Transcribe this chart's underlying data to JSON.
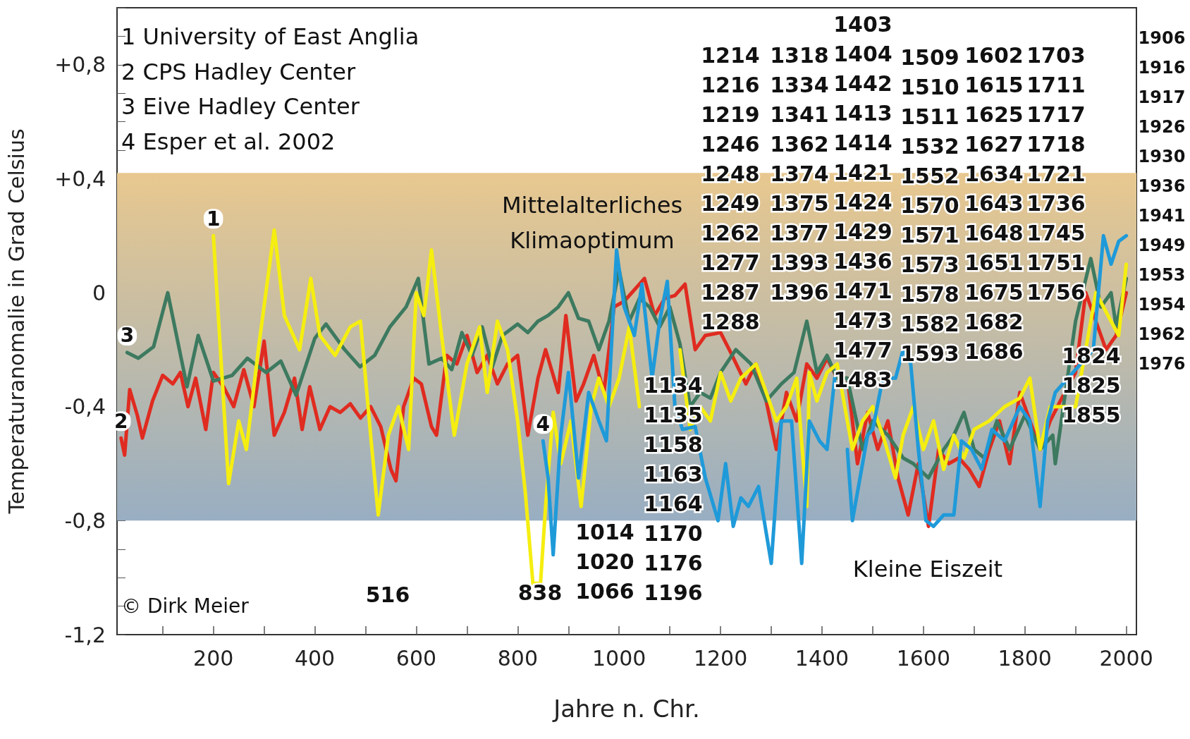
{
  "chart_data": {
    "type": "line",
    "xlabel": "Jahre n. Chr.",
    "ylabel": "Temperaturanomalie in Grad Celsius",
    "xlim": [
      10,
      2020
    ],
    "ylim": [
      -1.2,
      1.0
    ],
    "xticks": [
      {
        "value": 100,
        "label": null
      },
      200,
      {
        "value": 300,
        "label": null
      },
      400,
      {
        "value": 500,
        "label": null
      },
      600,
      {
        "value": 700,
        "label": null
      },
      800,
      {
        "value": 900,
        "label": null
      },
      1000,
      {
        "value": 1100,
        "label": null
      },
      1200,
      {
        "value": 1300,
        "label": null
      },
      1400,
      {
        "value": 1500,
        "label": null
      },
      1600,
      {
        "value": 1700,
        "label": null
      },
      1800,
      {
        "value": 1900,
        "label": null
      },
      2000
    ],
    "yticks": [
      {
        "value": -1.2,
        "label": "-1,2"
      },
      {
        "value": -1.1,
        "label": null
      },
      {
        "value": -1.0,
        "label": null
      },
      {
        "value": -0.9,
        "label": null
      },
      {
        "value": -0.8,
        "label": "-0,8"
      },
      {
        "value": -0.7,
        "label": null
      },
      {
        "value": -0.6,
        "label": null
      },
      {
        "value": -0.5,
        "label": null
      },
      {
        "value": -0.4,
        "label": "-0,4"
      },
      {
        "value": -0.3,
        "label": null
      },
      {
        "value": -0.2,
        "label": null
      },
      {
        "value": -0.1,
        "label": null
      },
      {
        "value": 0,
        "label": "0"
      },
      {
        "value": 0.1,
        "label": null
      },
      {
        "value": 0.2,
        "label": null
      },
      {
        "value": 0.3,
        "label": null
      },
      {
        "value": 0.4,
        "label": "+0,4"
      },
      {
        "value": 0.5,
        "label": null
      },
      {
        "value": 0.6,
        "label": null
      },
      {
        "value": 0.7,
        "label": null
      },
      {
        "value": 0.8,
        "label": "+0,8"
      },
      {
        "value": 0.9,
        "label": null
      },
      {
        "value": 1.0,
        "label": null
      }
    ],
    "grid": false,
    "legend": false,
    "marker": "none",
    "line_style": "solid",
    "bands": [
      {
        "axis": "y",
        "from": -0.8,
        "to": 0.42,
        "color": "#e8c88f"
      }
    ],
    "series": [
      {
        "name": "2",
        "color": "#e02b20",
        "x": [
          18,
          25,
          35,
          50,
          60,
          80,
          100,
          120,
          135,
          150,
          165,
          185,
          200,
          220,
          240,
          260,
          280,
          300,
          320,
          340,
          360,
          375,
          390,
          410,
          430,
          450,
          470,
          490,
          510,
          530,
          550,
          560,
          575,
          595,
          610,
          630,
          640,
          660,
          680,
          700,
          720,
          740,
          760,
          780,
          800,
          820,
          840,
          855,
          880,
          895,
          915,
          930,
          950,
          970,
          990,
          1010,
          1050,
          1070,
          1090,
          1110,
          1130,
          1150,
          1170,
          1200,
          1220,
          1250,
          1270,
          1290,
          1310,
          1330,
          1350,
          1370,
          1390,
          1410,
          1430,
          1450,
          1470,
          1490,
          1510,
          1530,
          1550,
          1570,
          1590,
          1610,
          1630,
          1650,
          1670,
          1690,
          1710,
          1730,
          1750,
          1770,
          1790,
          1810,
          1830,
          1850,
          1870,
          1900,
          1920,
          1940,
          1960,
          1980,
          2000
        ],
        "values": [
          -0.51,
          -0.57,
          -0.34,
          -0.43,
          -0.51,
          -0.38,
          -0.29,
          -0.32,
          -0.28,
          -0.4,
          -0.3,
          -0.48,
          -0.28,
          -0.33,
          -0.4,
          -0.27,
          -0.4,
          -0.17,
          -0.5,
          -0.42,
          -0.3,
          -0.48,
          -0.33,
          -0.48,
          -0.4,
          -0.42,
          -0.39,
          -0.44,
          -0.4,
          -0.47,
          -0.62,
          -0.66,
          -0.4,
          -0.3,
          -0.32,
          -0.47,
          -0.5,
          -0.22,
          -0.25,
          -0.15,
          -0.28,
          -0.22,
          -0.32,
          -0.25,
          -0.22,
          -0.5,
          -0.3,
          -0.2,
          -0.35,
          -0.08,
          -0.38,
          -0.32,
          -0.22,
          -0.35,
          -0.05,
          -0.03,
          0.05,
          -0.08,
          -0.02,
          -0.01,
          0.03,
          -0.2,
          -0.15,
          -0.14,
          -0.21,
          -0.32,
          -0.25,
          -0.38,
          -0.55,
          -0.35,
          -0.45,
          -0.25,
          -0.3,
          -0.23,
          -0.3,
          -0.3,
          -0.6,
          -0.42,
          -0.55,
          -0.45,
          -0.65,
          -0.78,
          -0.6,
          -0.82,
          -0.55,
          -0.6,
          -0.58,
          -0.62,
          -0.68,
          -0.55,
          -0.45,
          -0.6,
          -0.35,
          -0.45,
          -0.55,
          -0.45,
          -0.38,
          -0.28,
          0.0,
          -0.1,
          -0.2,
          -0.15,
          0.0
        ]
      },
      {
        "name": "3",
        "color": "#3d7a60",
        "x": [
          30,
          52,
          82,
          110,
          148,
          170,
          200,
          237,
          267,
          304,
          333,
          363,
          400,
          422,
          459,
          489,
          518,
          548,
          580,
          604,
          625,
          650,
          670,
          690,
          710,
          730,
          750,
          770,
          800,
          820,
          840,
          860,
          880,
          900,
          920,
          940,
          960,
          980,
          1000,
          1020,
          1040,
          1060,
          1080,
          1100,
          1120,
          1140,
          1160,
          1180,
          1200,
          1230,
          1260,
          1290,
          1320,
          1345,
          1370,
          1390,
          1410,
          1430,
          1450,
          1480,
          1500,
          1530,
          1560,
          1580,
          1610,
          1640,
          1660,
          1680,
          1700,
          1720,
          1745,
          1770,
          1800,
          1830,
          1855,
          1860,
          1900,
          1930,
          1950,
          1970,
          1980,
          2000
        ],
        "values": [
          -0.21,
          -0.23,
          -0.19,
          0.0,
          -0.33,
          -0.15,
          -0.31,
          -0.29,
          -0.23,
          -0.28,
          -0.24,
          -0.36,
          -0.16,
          -0.11,
          -0.2,
          -0.26,
          -0.22,
          -0.12,
          -0.05,
          0.05,
          -0.25,
          -0.23,
          -0.27,
          -0.14,
          -0.22,
          -0.12,
          -0.26,
          -0.15,
          -0.11,
          -0.14,
          -0.1,
          -0.08,
          -0.05,
          0.0,
          -0.09,
          -0.1,
          -0.2,
          -0.1,
          0.08,
          -0.1,
          -0.02,
          -0.05,
          -0.12,
          -0.05,
          -0.18,
          -0.4,
          -0.35,
          -0.37,
          -0.28,
          -0.2,
          -0.25,
          -0.38,
          -0.32,
          -0.28,
          -0.1,
          -0.28,
          -0.22,
          -0.3,
          -0.3,
          -0.55,
          -0.45,
          -0.5,
          -0.58,
          -0.6,
          -0.65,
          -0.55,
          -0.5,
          -0.42,
          -0.55,
          -0.58,
          -0.45,
          -0.55,
          -0.43,
          -0.55,
          -0.5,
          -0.6,
          -0.1,
          0.12,
          -0.05,
          0.0,
          -0.12,
          0.05
        ]
      },
      {
        "name": "1",
        "color": "#f5ee10",
        "x": [
          200,
          230,
          250,
          265,
          290,
          320,
          340,
          370,
          392,
          410,
          440,
          470,
          490,
          510,
          525,
          545,
          565,
          585,
          600,
          615,
          630,
          650,
          675,
          700,
          725,
          740,
          760,
          780,
          800,
          815,
          830,
          845,
          855,
          870,
          885,
          905,
          925,
          945,
          960,
          980,
          1000,
          1020,
          1040,
          1060,
          1080,
          1100,
          1120,
          1140,
          1160,
          1180,
          1200,
          1220,
          1240,
          1270,
          1290,
          1310,
          1330,
          1350,
          1370,
          1375,
          1390,
          1410,
          1430,
          1460,
          1480,
          1500,
          1520,
          1545,
          1560,
          1580,
          1600,
          1620,
          1640,
          1660,
          1680,
          1700,
          1730,
          1760,
          1790,
          1810,
          1830,
          1850,
          1900,
          1940,
          1970,
          1985,
          2000
        ],
        "values": [
          0.2,
          -0.67,
          -0.45,
          -0.55,
          -0.18,
          0.22,
          -0.08,
          -0.2,
          0.05,
          -0.15,
          -0.22,
          -0.12,
          -0.1,
          -0.5,
          -0.78,
          -0.5,
          -0.4,
          -0.55,
          0.0,
          -0.08,
          0.15,
          -0.15,
          -0.5,
          -0.25,
          -0.12,
          -0.35,
          -0.1,
          -0.2,
          -0.45,
          -0.7,
          -1.02,
          -1.02,
          -0.75,
          -0.42,
          -0.6,
          -0.45,
          -0.75,
          -0.4,
          -0.3,
          -0.4,
          -0.3,
          -0.12,
          -0.4,
          null,
          null,
          null,
          -0.2,
          -0.48,
          -0.4,
          -0.45,
          -0.28,
          -0.38,
          -0.3,
          -0.25,
          -0.35,
          -0.45,
          -0.4,
          -0.3,
          -0.75,
          -0.28,
          -0.38,
          -0.28,
          -0.25,
          -0.55,
          -0.45,
          -0.4,
          -0.5,
          -0.65,
          -0.5,
          -0.4,
          -0.55,
          -0.45,
          -0.62,
          -0.5,
          -0.58,
          -0.48,
          -0.45,
          -0.4,
          -0.37,
          -0.3,
          -0.55,
          -0.4,
          -0.4,
          0.0,
          -0.1,
          -0.15,
          0.1
        ]
      },
      {
        "name": "4",
        "color": "#1f9ad9",
        "x": [
          850,
          860,
          870,
          885,
          900,
          920,
          940,
          960,
          975,
          995,
          1010,
          1030,
          1045,
          1065,
          1080,
          1095,
          1110,
          1125,
          1150,
          1170,
          1195,
          1210,
          1225,
          1240,
          1255,
          1275,
          1300,
          1320,
          1340,
          1360,
          1375,
          1395,
          1410,
          1425,
          1440,
          1450,
          1460,
          1475,
          1490,
          1500,
          1520,
          1545,
          1560,
          1575,
          1590,
          1605,
          1620,
          1640,
          1660,
          1675,
          1695,
          1715,
          1735,
          1760,
          1790,
          1810,
          1830,
          1845,
          1860,
          1935,
          1955,
          1970,
          1985,
          2000
        ],
        "values": [
          -0.52,
          -0.65,
          -0.92,
          -0.5,
          -0.28,
          -0.65,
          -0.35,
          -0.45,
          -0.52,
          0.15,
          -0.05,
          -0.15,
          0.03,
          -0.3,
          -0.1,
          0.04,
          -0.4,
          -0.48,
          -0.47,
          -0.65,
          -0.8,
          -0.6,
          -0.82,
          -0.72,
          -0.75,
          -0.68,
          -0.95,
          -0.45,
          -0.45,
          -0.95,
          -0.45,
          -0.52,
          -0.55,
          -0.3,
          null,
          -0.55,
          -0.8,
          -0.65,
          -0.5,
          -0.48,
          -0.3,
          -0.3,
          -0.2,
          -0.25,
          -0.55,
          -0.8,
          -0.82,
          -0.78,
          -0.78,
          -0.52,
          -0.55,
          -0.62,
          -0.48,
          -0.52,
          -0.4,
          -0.45,
          -0.75,
          -0.45,
          -0.35,
          -0.2,
          0.2,
          0.1,
          0.18,
          0.2
        ]
      }
    ],
    "annotations": [
      "1 University of East Anglia",
      "2 CPS Hadley Center",
      "3 Eive Hadley Center",
      "4 Esper et al. 2002",
      "© Dirk Meier",
      "1906",
      "1916",
      "1917",
      "1926",
      "1930",
      "1936",
      "1941",
      "1949",
      "1953",
      "1954",
      "1962",
      "1976",
      "Mittelalterliches",
      "Klimaoptimum",
      "Kleine Eiszeit",
      "1214",
      "1216",
      "1219",
      "1246",
      "1248",
      "1249",
      "1262",
      "1277",
      "1287",
      "1288",
      "1318",
      "1334",
      "1341",
      "1362",
      "1374",
      "1375",
      "1377",
      "1393",
      "1396",
      "1403",
      "1404",
      "1442",
      "1413",
      "1414",
      "1421",
      "1424",
      "1429",
      "1436",
      "1471",
      "1473",
      "1477",
      "1483",
      "1509",
      "1510",
      "1511",
      "1532",
      "1552",
      "1570",
      "1571",
      "1573",
      "1578",
      "1582",
      "1593",
      "1602",
      "1615",
      "1625",
      "1627",
      "1634",
      "1643",
      "1648",
      "1651",
      "1675",
      "1682",
      "1686",
      "1703",
      "1711",
      "1717",
      "1718",
      "1721",
      "1736",
      "1745",
      "1751",
      "1756",
      "1824",
      "1825",
      "1855",
      "1134",
      "1135",
      "1158",
      "1163",
      "1164",
      "1170",
      "1176",
      "1196",
      "1014",
      "1020",
      "1066",
      "838",
      "516"
    ]
  }
}
